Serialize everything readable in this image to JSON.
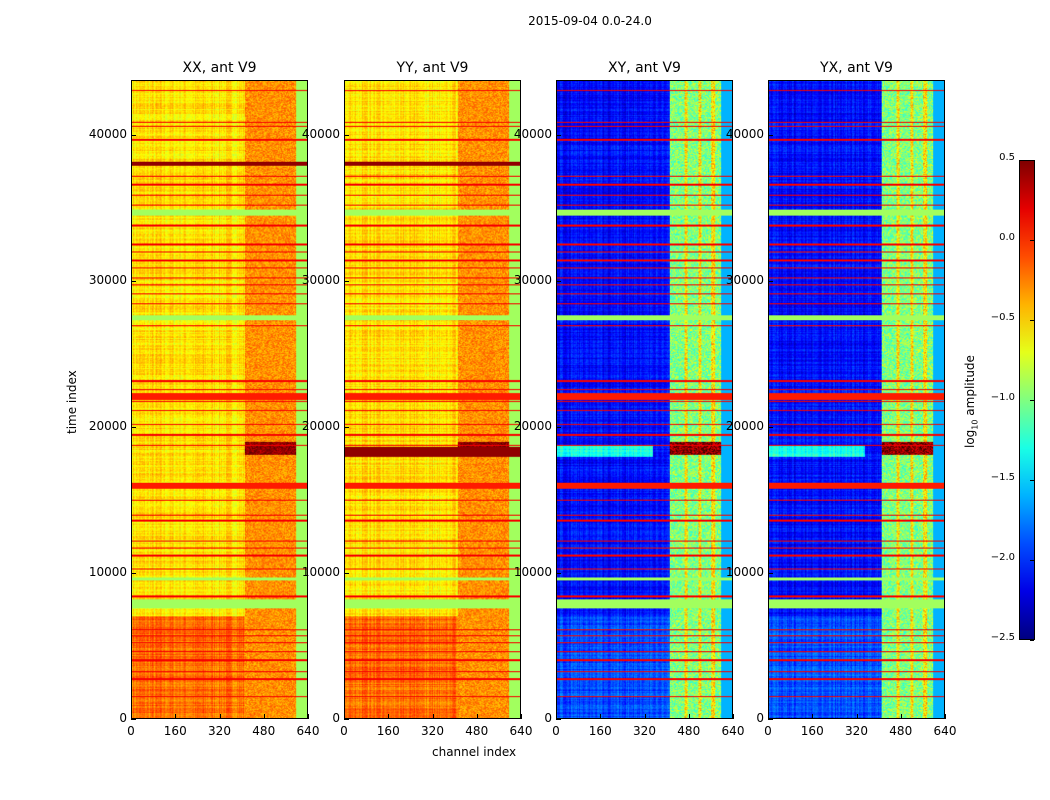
{
  "chart_data": {
    "type": "heatmap",
    "title": "2015-09-04 0.0-24.0",
    "xlabel": "channel index",
    "ylabel": "time index",
    "xlim": [
      0,
      640
    ],
    "ylim": [
      0,
      43800
    ],
    "xticks": [
      "0",
      "160",
      "320",
      "480",
      "640"
    ],
    "xtick_values": [
      0,
      160,
      320,
      480,
      640
    ],
    "yticks": [
      "0",
      "10000",
      "20000",
      "30000",
      "40000"
    ],
    "ytick_values": [
      0,
      10000,
      20000,
      30000,
      40000
    ],
    "colorbar": {
      "label": "log10 amplitude",
      "label_main": "log",
      "label_sub": "10",
      "label_rest": " amplitude",
      "range": [
        -2.5,
        0.5
      ],
      "ticks": [
        "0.5",
        "0.0",
        "−0.5",
        "−1.0",
        "−1.5",
        "−2.0",
        "−2.5"
      ],
      "tick_values": [
        0.5,
        0.0,
        -0.5,
        -1.0,
        -1.5,
        -2.0,
        -2.5
      ],
      "colormap": "jet"
    },
    "panels": [
      {
        "title": "XX, ant V9",
        "kind": "auto",
        "base": -0.55,
        "rfi_band_value": -0.3,
        "edge_value": -0.9,
        "low_time_value": -0.2
      },
      {
        "title": "YY, ant V9",
        "kind": "auto",
        "base": -0.55,
        "rfi_band_value": -0.3,
        "edge_value": -0.9,
        "low_time_value": -0.2
      },
      {
        "title": "XY, ant V9",
        "kind": "cross",
        "base": -2.1,
        "rfi_band_value": -1.0,
        "edge_value": -1.6,
        "low_time_value": -1.9
      },
      {
        "title": "YX, ant V9",
        "kind": "cross",
        "base": -2.1,
        "rfi_band_value": -1.0,
        "edge_value": -1.6,
        "low_time_value": -1.9
      }
    ],
    "rfi_channel_range": [
      410,
      600
    ],
    "rfi_stripe_channels": [
      470,
      520,
      570
    ],
    "flagged_rows_red": [
      1500,
      2700,
      3200,
      4000,
      4600,
      5200,
      5700,
      6100,
      8400,
      10300,
      11200,
      11700,
      12200,
      13600,
      14000,
      15000,
      18800,
      19500,
      20200,
      21200,
      21800,
      22200,
      22600,
      23200,
      27000,
      28500,
      29200,
      29800,
      30300,
      31000,
      31500,
      32100,
      32600,
      33900,
      35300,
      36000,
      36700,
      37300,
      39800,
      40700,
      41000,
      43200
    ],
    "green_bands": [
      [
        7600,
        8200
      ],
      [
        34600,
        35000
      ],
      [
        27400,
        27700
      ],
      [
        9500,
        9700
      ]
    ],
    "orange_bands": [
      [
        15800,
        16200
      ],
      [
        21900,
        22400
      ]
    ],
    "dark_red_band_rfi": [
      18100,
      19000
    ],
    "yy_full_dark_rows": [
      [
        38000,
        38300
      ],
      [
        18000,
        18700
      ]
    ],
    "xx_dark_row": [
      38000,
      38300
    ]
  }
}
